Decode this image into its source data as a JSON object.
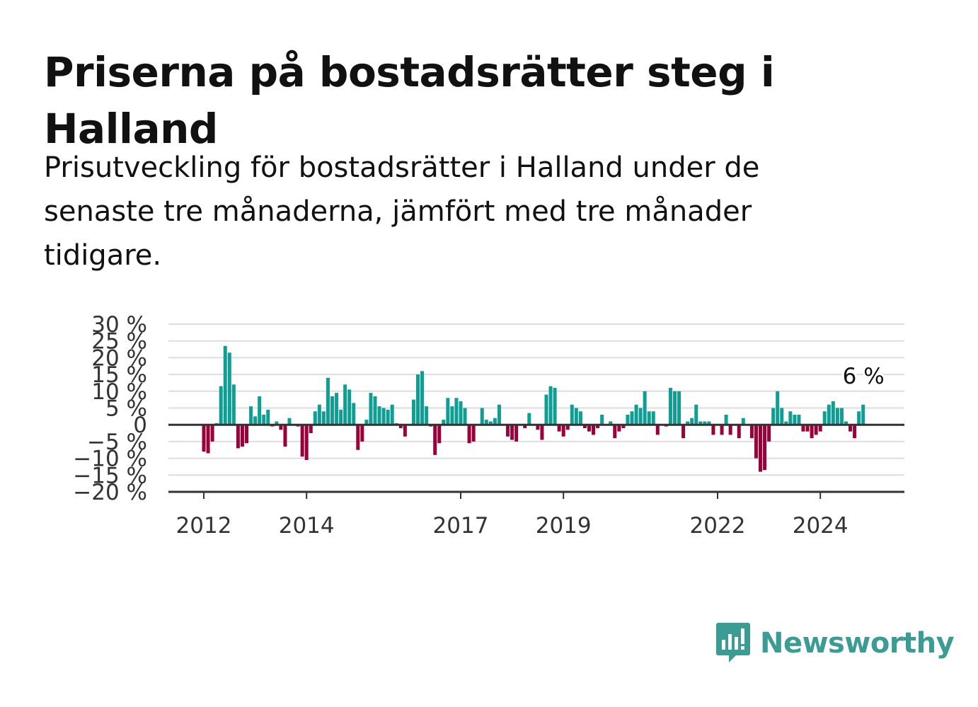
{
  "title": "Priserna på bostadsrätter steg i Halland",
  "subtitle": "Prisutveckling för bostadsrätter i Halland under de senaste tre månaderna, jämfört med tre månader tidigare.",
  "brand": {
    "name": "Newsworthy",
    "icon": "newsworthy-logo-icon",
    "color": "#3b9c94"
  },
  "chart_data": {
    "type": "bar",
    "unit": "%",
    "ylim": [
      -20,
      30
    ],
    "yticks": [
      30,
      25,
      20,
      15,
      10,
      5,
      0,
      -5,
      -10,
      -15,
      -20
    ],
    "ytick_labels": [
      "30 %",
      "25 %",
      "20 %",
      "15 %",
      "10 %",
      "5 %",
      "0",
      "−5 %",
      "−10 %",
      "−15 %",
      "−20 %"
    ],
    "x_start_year": 2011,
    "x_ticks": [
      "2012",
      "2014",
      "2017",
      "2019",
      "2022",
      "2024"
    ],
    "grid": true,
    "positive_color": "#0e9e94",
    "negative_color": "#9a003a",
    "annotation": {
      "label": "6 %",
      "value": 6
    },
    "values": [
      -8,
      -8.5,
      -5,
      0.5,
      11.5,
      23.5,
      21.5,
      12,
      -7,
      -6.5,
      -5.5,
      5.5,
      2.5,
      8.5,
      3,
      4.5,
      -0.5,
      1,
      -1.5,
      -6.5,
      2,
      0,
      -0.5,
      -9.5,
      -10.5,
      -2.5,
      4,
      6,
      4,
      14,
      8.5,
      9.5,
      4.5,
      12,
      10.5,
      6.5,
      -7.5,
      -5,
      1.5,
      9.5,
      8.5,
      5.5,
      5,
      4.5,
      6,
      0.5,
      -1,
      -3.5,
      0,
      7.5,
      15,
      16,
      5.5,
      -0.5,
      -9,
      -5.5,
      1.5,
      8,
      5.5,
      8,
      7,
      5,
      -5.5,
      -5,
      0,
      5,
      1.5,
      1,
      2,
      6,
      0,
      -3.5,
      -4.5,
      -5,
      0,
      -1,
      3.5,
      0,
      -1.5,
      -4.5,
      9,
      11.5,
      11,
      -2,
      -3.5,
      -1.5,
      6,
      5,
      4,
      -1,
      -2,
      -3,
      -1,
      3,
      0,
      1,
      -4,
      -2,
      -1,
      3,
      4,
      6,
      5,
      10,
      4,
      4,
      -3,
      0,
      -0.5,
      11,
      10,
      10,
      -4,
      1,
      2,
      6,
      1,
      1,
      1,
      -3,
      0,
      -3,
      3,
      -3,
      0,
      -4,
      2,
      0,
      -4,
      -10,
      -14,
      -13.5,
      -5,
      5,
      10,
      5,
      1,
      4,
      3,
      3,
      -2,
      -2,
      -4,
      -3,
      -2,
      4,
      6,
      7,
      5,
      5,
      1,
      -2,
      -4,
      4,
      6
    ]
  }
}
